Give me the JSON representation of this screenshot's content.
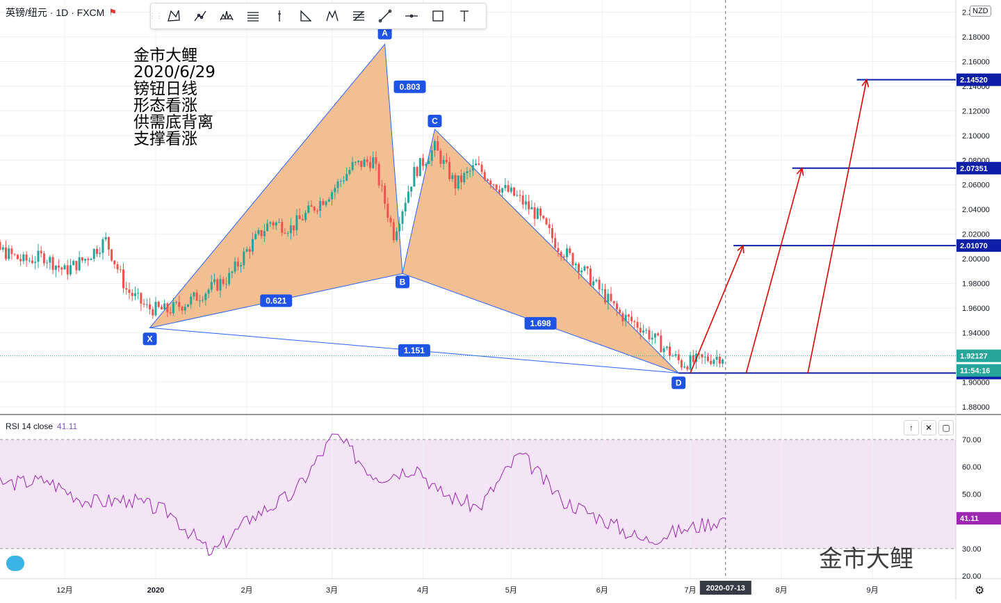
{
  "header": {
    "symbol": "英镑/纽元 · 1D · FXCM",
    "currency": "NZD"
  },
  "toolbar": {
    "tools": [
      "xabcd-pattern-icon",
      "cypher-pattern-icon",
      "head-shoulders-icon",
      "abcd-pattern-icon",
      "triangle-pattern-icon",
      "three-drives-icon",
      "elliott-wave-icon",
      "fib-retracement-icon",
      "trend-line-icon",
      "horizontal-line-icon",
      "rectangle-icon",
      "text-icon"
    ]
  },
  "notes": [
    "金市大鲤",
    "2020/6/29",
    "镑钮日线",
    "形态看涨",
    "供需底背离",
    "支撑看涨"
  ],
  "watermark": "金市大鲤",
  "rsi": {
    "label": "RSI 14 close",
    "value": "41.11"
  },
  "cursor_date": "2020-07-13",
  "colors": {
    "up": "#26a69a",
    "down": "#ef5350",
    "pattern_fill": "#f0b47f",
    "pattern_line": "#2962ff",
    "rsi_line": "#9c27b0",
    "rsi_band": "#f3e5f5",
    "target_line": "#0d1fa6",
    "arrow": "#e00000"
  },
  "chart_data": [
    {
      "type": "candlestick",
      "title": "英镑/纽元 · 1D · FXCM",
      "ylim": [
        1.87,
        2.21
      ],
      "y_ticks": [
        "1.88000",
        "1.90000",
        "1.92000",
        "1.94000",
        "1.96000",
        "1.98000",
        "2.00000",
        "2.02000",
        "2.04000",
        "2.06000",
        "2.08000",
        "2.10000",
        "2.12000",
        "2.14000",
        "2.16000",
        "2.18000",
        "2.20000"
      ],
      "x_ticks": [
        "12月",
        "2020",
        "2月",
        "3月",
        "4月",
        "5月",
        "6月",
        "7月",
        "8月",
        "9月"
      ],
      "x_tick_dates": [
        "2019-12-01",
        "2020-01-01",
        "2020-02-01",
        "2020-03-01",
        "2020-04-01",
        "2020-05-01",
        "2020-06-01",
        "2020-07-01",
        "2020-08-01",
        "2020-09-01"
      ],
      "series": [
        {
          "date": "2019-10-28",
          "close": 2.005
        },
        {
          "date": "2019-11-04",
          "close": 2.012
        },
        {
          "date": "2019-11-11",
          "close": 2.006
        },
        {
          "date": "2019-11-18",
          "close": 1.998
        },
        {
          "date": "2019-11-25",
          "close": 2.002
        },
        {
          "date": "2019-12-02",
          "close": 1.99
        },
        {
          "date": "2019-12-09",
          "close": 2.0
        },
        {
          "date": "2019-12-16",
          "close": 2.015
        },
        {
          "date": "2019-12-23",
          "close": 1.975
        },
        {
          "date": "2019-12-30",
          "close": 1.96
        },
        {
          "date": "2020-01-06",
          "close": 1.958
        },
        {
          "date": "2020-01-13",
          "close": 1.965
        },
        {
          "date": "2020-01-20",
          "close": 1.975
        },
        {
          "date": "2020-01-27",
          "close": 1.985
        },
        {
          "date": "2020-02-03",
          "close": 2.01
        },
        {
          "date": "2020-02-10",
          "close": 2.03
        },
        {
          "date": "2020-02-17",
          "close": 2.025
        },
        {
          "date": "2020-02-24",
          "close": 2.04
        },
        {
          "date": "2020-03-02",
          "close": 2.055
        },
        {
          "date": "2020-03-09",
          "close": 2.075
        },
        {
          "date": "2020-03-16",
          "close": 2.08
        },
        {
          "date": "2020-03-23",
          "close": 2.02
        },
        {
          "date": "2020-03-30",
          "close": 2.07
        },
        {
          "date": "2020-04-06",
          "close": 2.09
        },
        {
          "date": "2020-04-13",
          "close": 2.06
        },
        {
          "date": "2020-04-20",
          "close": 2.075
        },
        {
          "date": "2020-04-27",
          "close": 2.06
        },
        {
          "date": "2020-05-04",
          "close": 2.05
        },
        {
          "date": "2020-05-11",
          "close": 2.035
        },
        {
          "date": "2020-05-18",
          "close": 2.01
        },
        {
          "date": "2020-05-25",
          "close": 1.995
        },
        {
          "date": "2020-06-01",
          "close": 1.975
        },
        {
          "date": "2020-06-08",
          "close": 1.955
        },
        {
          "date": "2020-06-15",
          "close": 1.945
        },
        {
          "date": "2020-06-22",
          "close": 1.93
        },
        {
          "date": "2020-06-29",
          "close": 1.915
        },
        {
          "date": "2020-07-06",
          "close": 1.918
        },
        {
          "date": "2020-07-13",
          "close": 1.92127
        }
      ],
      "harmonic_pattern": {
        "points": [
          {
            "label": "X",
            "date": "2019-12-30",
            "price": 1.944
          },
          {
            "label": "A",
            "date": "2020-03-19",
            "price": 2.174
          },
          {
            "label": "B",
            "date": "2020-03-25",
            "price": 1.988
          },
          {
            "label": "C",
            "date": "2020-04-05",
            "price": 2.105
          },
          {
            "label": "D",
            "date": "2020-06-27",
            "price": 1.9073
          }
        ],
        "ratios": [
          {
            "text": "0.621",
            "between": "XB"
          },
          {
            "text": "0.803",
            "between": "AC"
          },
          {
            "text": "1.698",
            "between": "BD"
          },
          {
            "text": "1.151",
            "between": "XD"
          }
        ]
      },
      "levels": [
        {
          "price": 2.1452,
          "label": "2.14520"
        },
        {
          "price": 2.07351,
          "label": "2.07351"
        },
        {
          "price": 2.0107,
          "label": "2.01070"
        },
        {
          "price": 1.90729,
          "label": "1.90729"
        }
      ],
      "current_price": {
        "price": 1.92127,
        "label": "1.92127",
        "countdown": "11:54:16"
      },
      "arrows": [
        {
          "from": {
            "date": "2020-07-01",
            "price": 1.9073
          },
          "to": {
            "date": "2020-07-19",
            "price": 2.0107
          }
        },
        {
          "from": {
            "date": "2020-07-20",
            "price": 1.9073
          },
          "to": {
            "date": "2020-08-08",
            "price": 2.07351
          }
        },
        {
          "from": {
            "date": "2020-08-10",
            "price": 1.9073
          },
          "to": {
            "date": "2020-08-30",
            "price": 2.1452
          }
        }
      ]
    },
    {
      "type": "line",
      "title": "RSI 14 close",
      "ylim": [
        20,
        75
      ],
      "y_ticks": [
        "20.00",
        "30.00",
        "40.00",
        "50.00",
        "60.00",
        "70.00"
      ],
      "band": [
        30,
        70
      ],
      "series": [
        {
          "name": "RSI 14 close",
          "x": [
            "2019-10-28",
            "2019-11-11",
            "2019-11-25",
            "2019-12-09",
            "2019-12-23",
            "2020-01-06",
            "2020-01-20",
            "2020-02-03",
            "2020-02-17",
            "2020-03-02",
            "2020-03-16",
            "2020-03-30",
            "2020-04-06",
            "2020-04-20",
            "2020-05-04",
            "2020-05-18",
            "2020-06-01",
            "2020-06-15",
            "2020-06-29",
            "2020-07-13"
          ],
          "values": [
            59,
            54,
            55,
            47,
            48,
            43,
            28,
            42,
            50,
            72,
            56,
            60,
            51,
            45,
            65,
            48,
            41,
            33,
            37,
            41.11
          ]
        }
      ]
    }
  ]
}
